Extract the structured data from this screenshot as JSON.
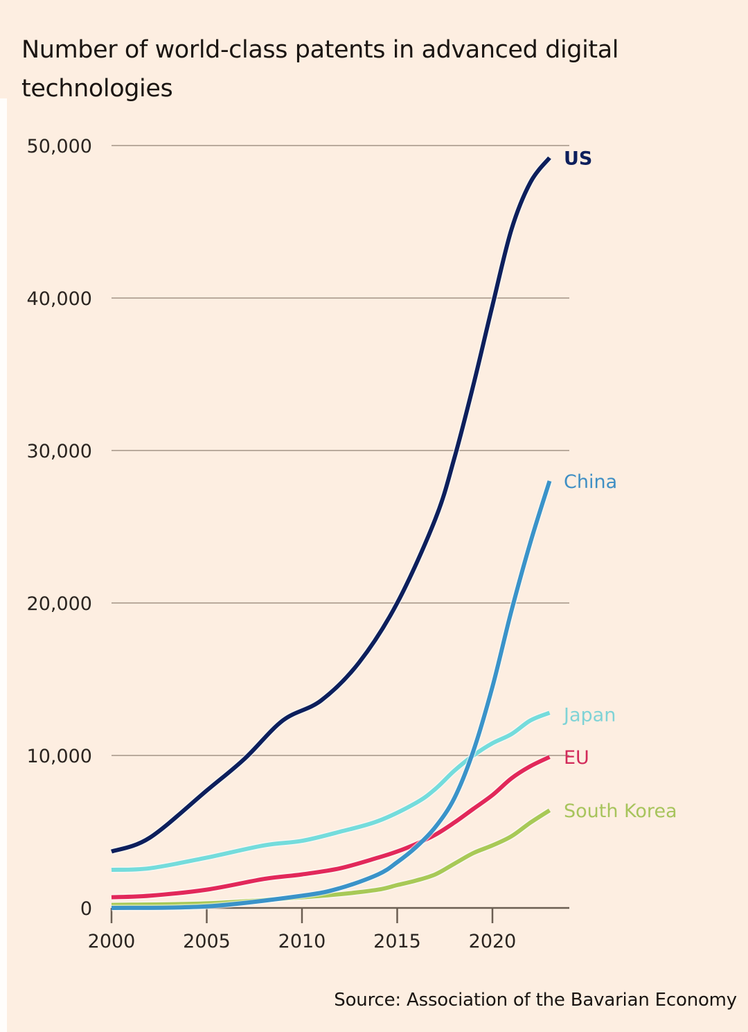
{
  "title": "Number of world-class patents in advanced digital technologies",
  "source": "Source: Association of the Bavarian Economy",
  "chart_data": {
    "type": "line",
    "title": "Number of world-class patents in advanced digital technologies",
    "xlabel": "",
    "ylabel": "",
    "xlim": [
      2000,
      2023
    ],
    "ylim": [
      0,
      50000
    ],
    "grid": true,
    "legend": "inline labels at line ends (right)",
    "x_ticks": [
      2000,
      2005,
      2010,
      2015,
      2020
    ],
    "x_tick_labels": [
      "2000",
      "2005",
      "2010",
      "2015",
      "2020"
    ],
    "y_ticks": [
      0,
      10000,
      20000,
      30000,
      40000,
      50000
    ],
    "y_tick_labels": [
      "0",
      "10,000",
      "20,000",
      "30,000",
      "40,000",
      "50,000"
    ],
    "series": [
      {
        "name": "US",
        "color": "#0d1f5c",
        "label_color": "#0d1f5c",
        "x": [
          2000,
          2002,
          2005,
          2007,
          2009,
          2011,
          2013,
          2015,
          2017,
          2018,
          2019,
          2020,
          2021,
          2022,
          2023
        ],
        "values": [
          3700,
          4600,
          7700,
          9800,
          12300,
          13600,
          16100,
          20000,
          25500,
          29500,
          34300,
          39500,
          44500,
          47600,
          49200
        ]
      },
      {
        "name": "China",
        "color": "#3a93c9",
        "label_color": "#3f8fc4",
        "x": [
          2000,
          2005,
          2010,
          2012,
          2014,
          2015,
          2016,
          2017,
          2018,
          2019,
          2020,
          2021,
          2022,
          2023
        ],
        "values": [
          0,
          100,
          800,
          1300,
          2200,
          3000,
          4000,
          5300,
          7200,
          10300,
          14500,
          19500,
          24000,
          28000
        ]
      },
      {
        "name": "Japan",
        "color": "#74dcdc",
        "label_color": "#7fd3d6",
        "x": [
          2000,
          2002,
          2005,
          2008,
          2010,
          2012,
          2014,
          2016,
          2017,
          2018,
          2019,
          2020,
          2021,
          2022,
          2023
        ],
        "values": [
          2500,
          2600,
          3300,
          4100,
          4400,
          5000,
          5700,
          6900,
          7800,
          9000,
          10000,
          10800,
          11400,
          12300,
          12800
        ]
      },
      {
        "name": "EU",
        "color": "#e2285a",
        "label_color": "#d22a5a",
        "x": [
          2000,
          2002,
          2005,
          2008,
          2010,
          2012,
          2014,
          2015,
          2016,
          2017,
          2018,
          2019,
          2020,
          2021,
          2022,
          2023
        ],
        "values": [
          700,
          800,
          1200,
          1900,
          2200,
          2600,
          3300,
          3700,
          4200,
          4800,
          5600,
          6500,
          7400,
          8500,
          9300,
          9900
        ]
      },
      {
        "name": "South Korea",
        "color": "#a8c957",
        "label_color": "#a7c45c",
        "x": [
          2000,
          2005,
          2010,
          2012,
          2014,
          2015,
          2016,
          2017,
          2018,
          2019,
          2020,
          2021,
          2022,
          2023
        ],
        "values": [
          200,
          300,
          700,
          900,
          1200,
          1500,
          1800,
          2200,
          2900,
          3600,
          4100,
          4700,
          5600,
          6400
        ]
      }
    ]
  }
}
